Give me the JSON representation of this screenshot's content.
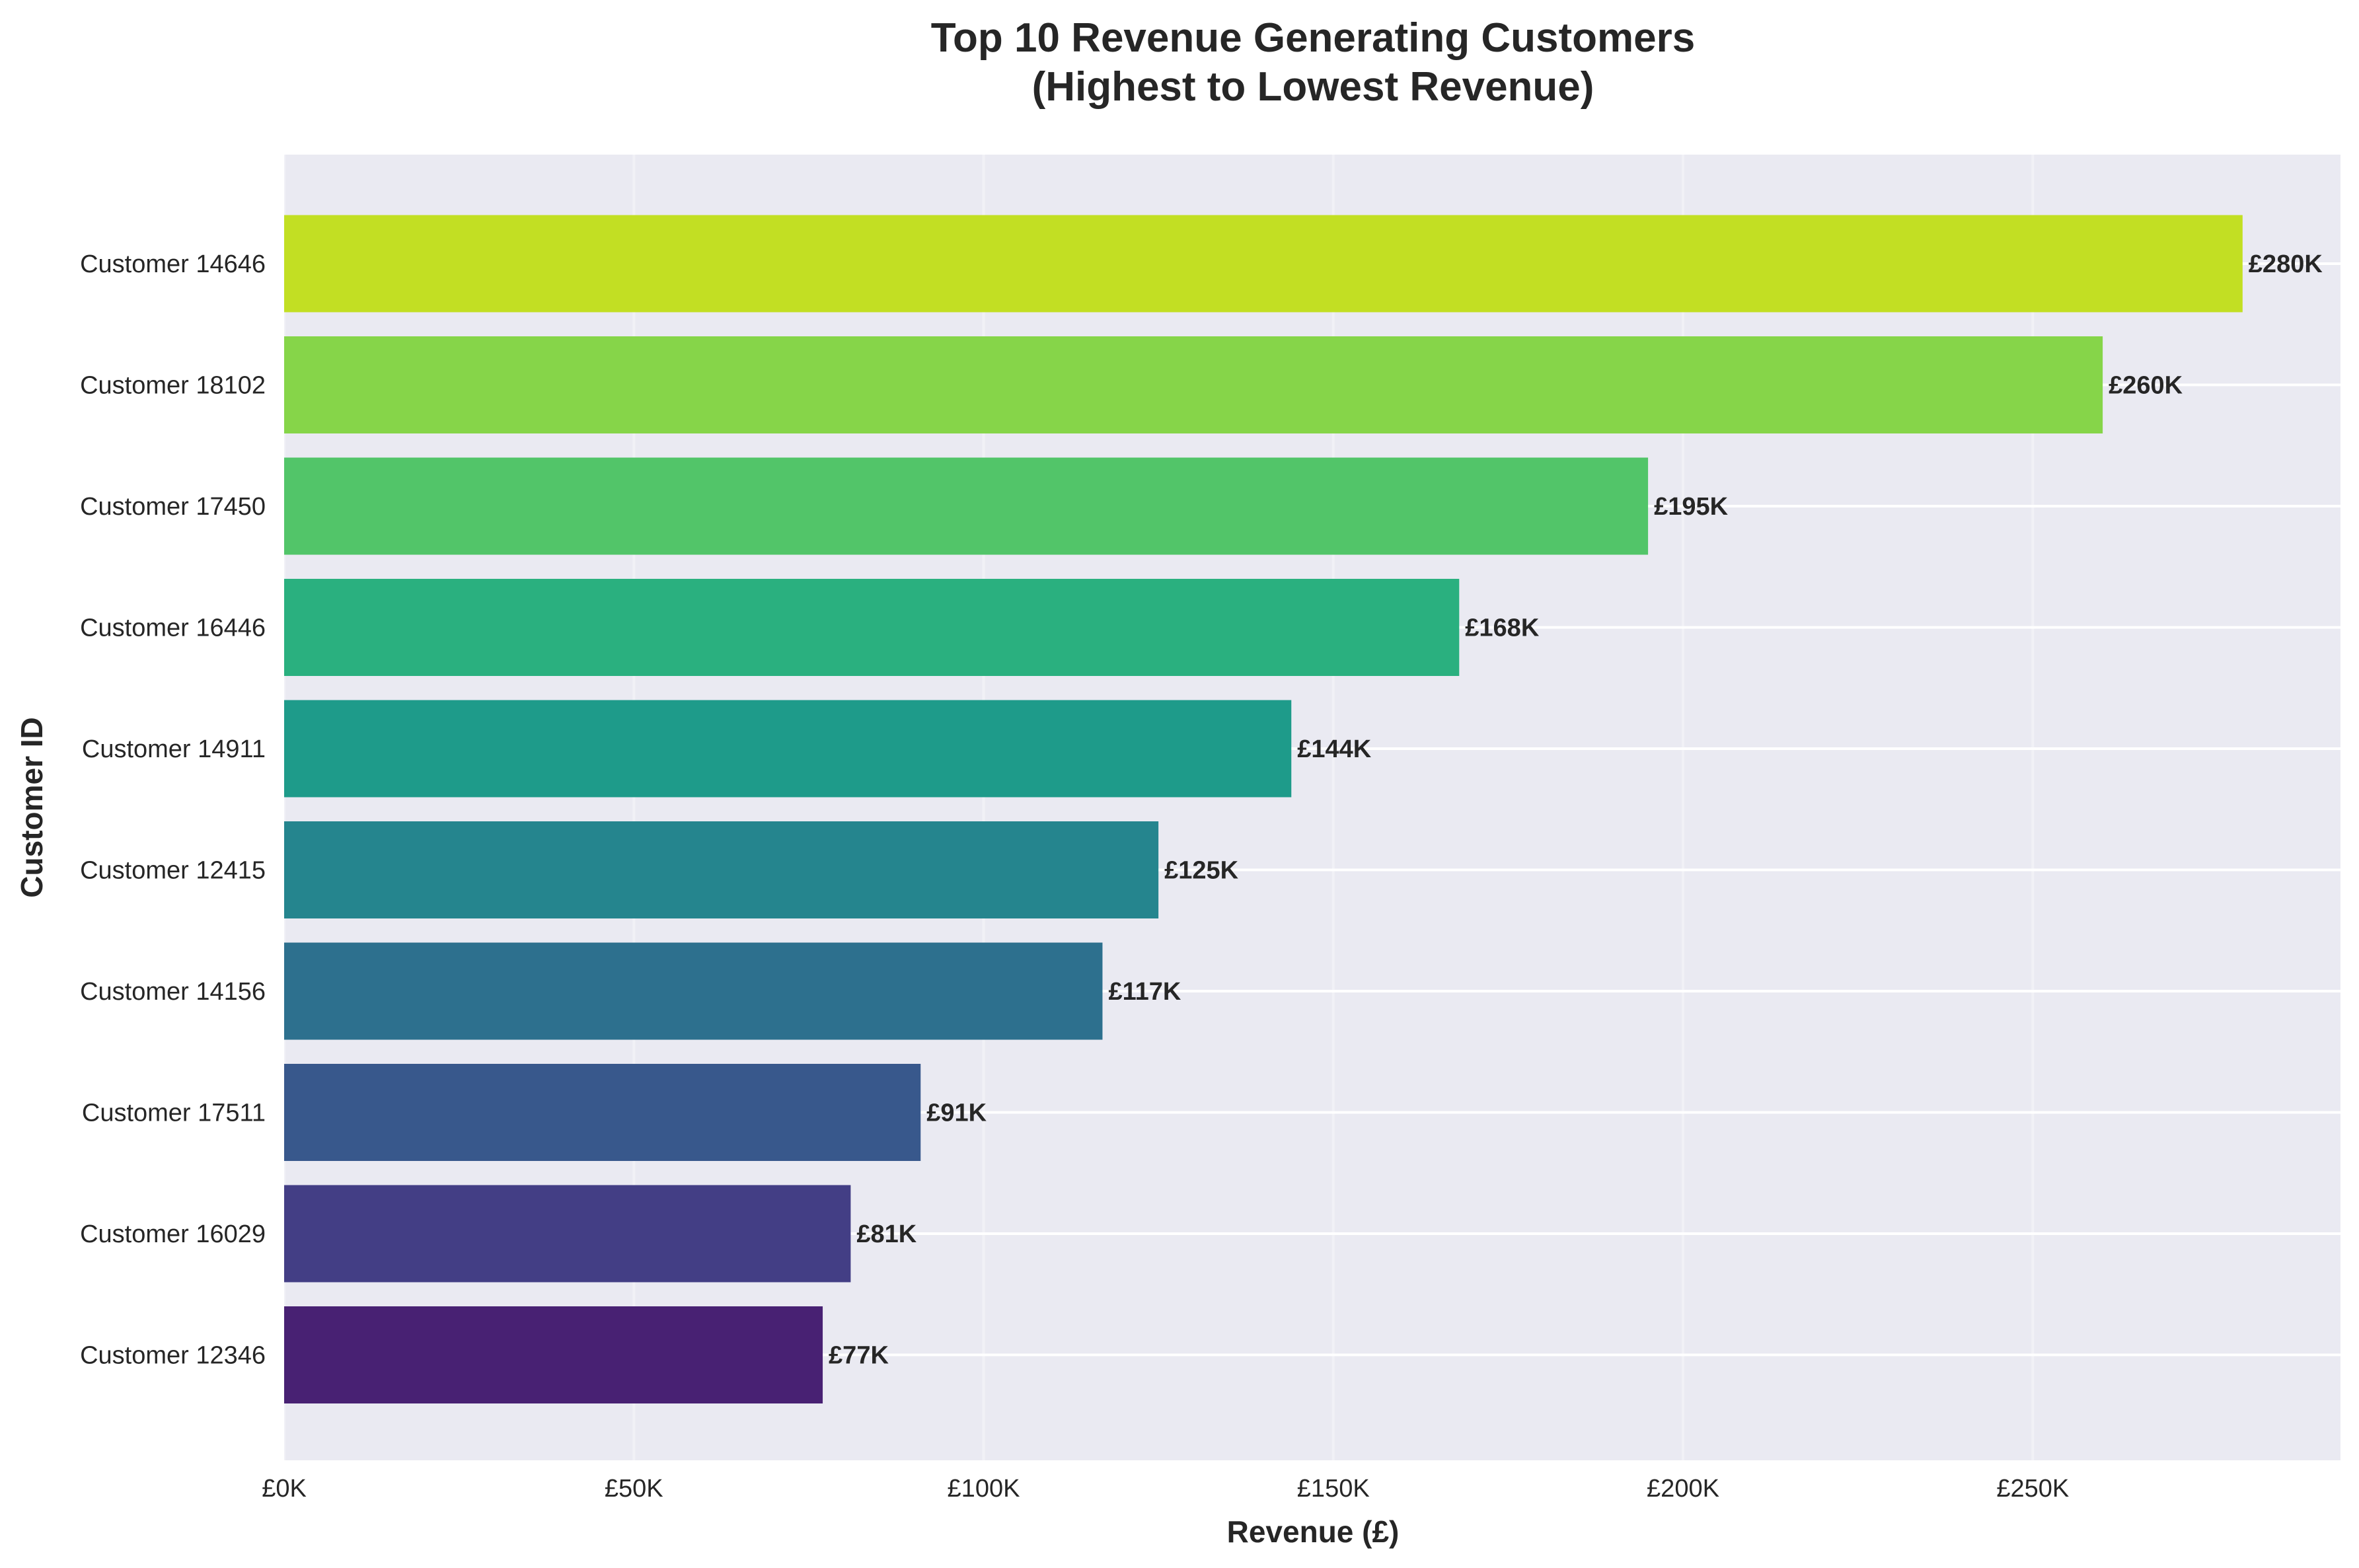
{
  "chart_data": {
    "type": "bar",
    "orientation": "horizontal",
    "title": [
      "Top 10 Revenue Generating Customers",
      "(Highest to Lowest Revenue)"
    ],
    "xlabel": "Revenue (£)",
    "ylabel": "Customer ID",
    "xlim": [
      0,
      294000
    ],
    "xticks": [
      0,
      50000,
      100000,
      150000,
      200000,
      250000
    ],
    "xtick_labels": [
      "£0K",
      "£50K",
      "£100K",
      "£150K",
      "£200K",
      "£250K"
    ],
    "grid": true,
    "categories": [
      "Customer 14646",
      "Customer 18102",
      "Customer 17450",
      "Customer 16446",
      "Customer 14911",
      "Customer 12415",
      "Customer 14156",
      "Customer 17511",
      "Customer 16029",
      "Customer 12346"
    ],
    "values": [
      280000,
      260000,
      195000,
      168000,
      144000,
      125000,
      117000,
      91000,
      81000,
      77000
    ],
    "data_labels": [
      "£280K",
      "£260K",
      "£195K",
      "£168K",
      "£144K",
      "£125K",
      "£117K",
      "£91K",
      "£81K",
      "£77K"
    ],
    "colors": [
      "#c2df23",
      "#86d549",
      "#52c569",
      "#2ab07f",
      "#1e9b8a",
      "#25858e",
      "#2d708e",
      "#38588c",
      "#433e85",
      "#482173"
    ],
    "background_color": "#eaeaf2",
    "grid_color": "#ffffff"
  }
}
